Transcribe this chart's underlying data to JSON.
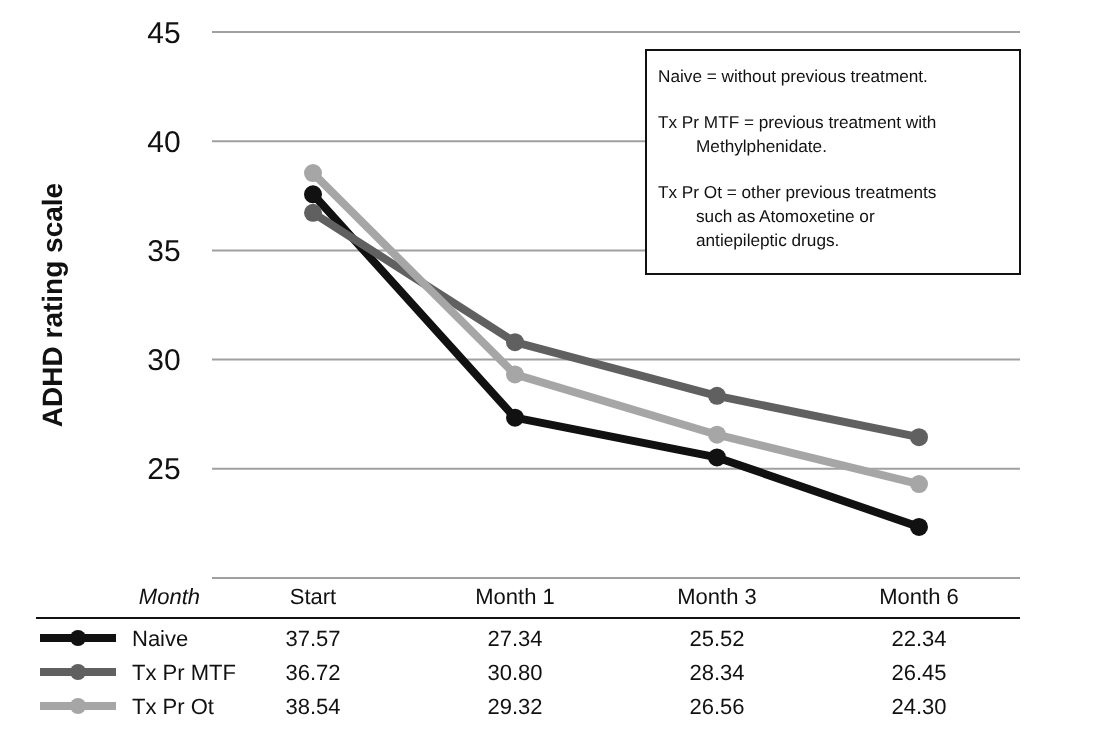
{
  "chart_data": {
    "type": "line",
    "ylabel": "ADHD rating scale",
    "xlabel": "Month",
    "categories": [
      "Start",
      "Month 1",
      "Month 3",
      "Month 6"
    ],
    "series": [
      {
        "name": "Naive",
        "color": "#111111",
        "values": [
          37.57,
          27.34,
          25.52,
          22.34
        ],
        "value_labels": [
          "37.57",
          "27.34",
          "25.52",
          "22.34"
        ]
      },
      {
        "name": "Tx Pr MTF",
        "color": "#606060",
        "values": [
          36.72,
          30.8,
          28.34,
          26.45
        ],
        "value_labels": [
          "36.72",
          "30.80",
          "28.34",
          "26.45"
        ]
      },
      {
        "name": "Tx Pr Ot",
        "color": "#a6a6a6",
        "values": [
          38.54,
          29.32,
          26.56,
          24.3
        ],
        "value_labels": [
          "38.54",
          "29.32",
          "26.56",
          "24.30"
        ]
      }
    ],
    "ylim": [
      20,
      45
    ],
    "yticks": [
      {
        "value": 20,
        "label": null
      },
      25,
      30,
      35,
      40,
      45
    ],
    "grid": "y",
    "marker": "circle",
    "line_style": "solid",
    "legend": "bottom",
    "annotations": [
      "Naive = without previous treatment.",
      "Tx Pr MTF = previous treatment with Methylphenidate.",
      "Tx Pr Ot = other previous treatments such as Atomoxetine or antiepileptic drugs."
    ]
  }
}
